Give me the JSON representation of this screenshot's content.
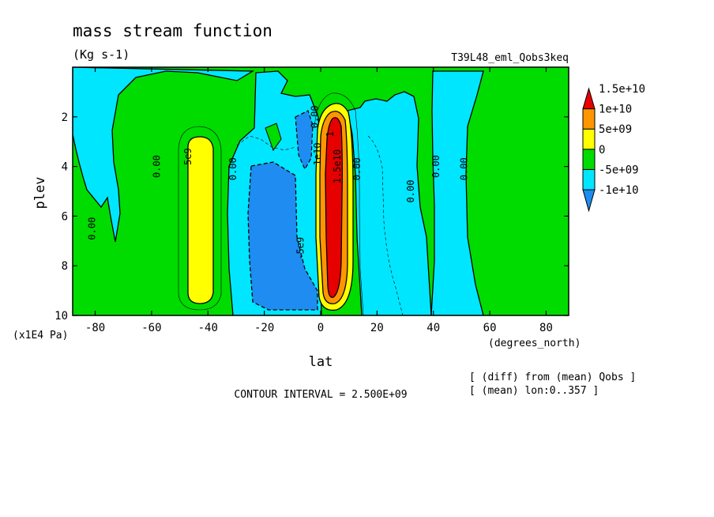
{
  "chart_data": {
    "type": "heatmap",
    "title": "mass stream function",
    "units": "(Kg s-1)",
    "run_label": "T39L48_eml_Qobs3keq",
    "xlabel": "lat",
    "ylabel": "plev",
    "x_units": "(degrees_north)",
    "y_units": "(x1E4 Pa)",
    "xlim": [
      -88,
      88
    ],
    "ylim": [
      0,
      10
    ],
    "y_reversed": true,
    "x_ticks": [
      "-80",
      "-60",
      "-40",
      "-20",
      "0",
      "20",
      "40",
      "60",
      "80"
    ],
    "x_tick_values": [
      -80,
      -60,
      -40,
      -20,
      0,
      20,
      40,
      60,
      80
    ],
    "y_ticks": [
      "2",
      "4",
      "6",
      "8",
      "10"
    ],
    "y_tick_values": [
      2,
      4,
      6,
      8,
      10
    ],
    "contour_interval_text": "CONTOUR INTERVAL = 2.500E+09",
    "notes": [
      "[ (diff) from (mean) Qobs ]",
      "[ (mean) lon:0..357 ]"
    ],
    "legend": {
      "placement": "right",
      "colors": [
        "#1e8cf0",
        "#00e6ff",
        "#00dc00",
        "#ffff00",
        "#ff9600",
        "#e60000"
      ],
      "labels": [
        "-1e+10",
        "-5e+09",
        "0",
        "5e+09",
        "1e+10",
        "1.5e+10"
      ]
    },
    "contour_labels": [
      {
        "text": "0.00",
        "x": -80,
        "y": 6.5
      },
      {
        "text": "0.00",
        "x": -57,
        "y": 4.0
      },
      {
        "text": "5e9",
        "x": -46,
        "y": 3.6
      },
      {
        "text": "0.00",
        "x": -30,
        "y": 4.1
      },
      {
        "text": "0.00",
        "x": -1,
        "y": 2.0
      },
      {
        "text": "-5e9",
        "x": -6,
        "y": 7.3
      },
      {
        "text": "1e10",
        "x": 0,
        "y": 3.5
      },
      {
        "text": "1",
        "x": 4.5,
        "y": 2.7
      },
      {
        "text": "1.5e10",
        "x": 7,
        "y": 4.0
      },
      {
        "text": "0.00",
        "x": 14,
        "y": 4.1
      },
      {
        "text": "0.00",
        "x": 33,
        "y": 5.0
      },
      {
        "text": "0.00",
        "x": 42,
        "y": 4.0
      },
      {
        "text": "0.00",
        "x": 52,
        "y": 4.1
      }
    ]
  }
}
